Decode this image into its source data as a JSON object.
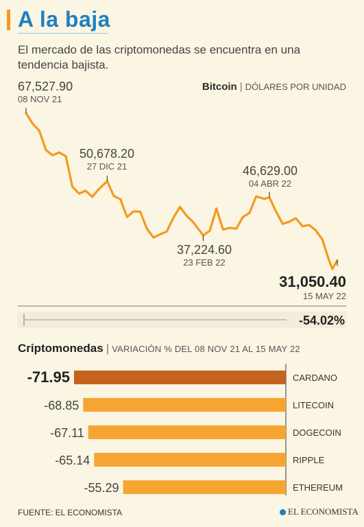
{
  "header": {
    "title": "A la baja",
    "subtitle": "El mercado de las criptomonedas se encuentra en una tendencia bajista."
  },
  "line_chart": {
    "series_name": "Bitcoin",
    "unit": "DÓLARES POR UNIDAD",
    "total_change": "-54.02%",
    "total_change_value": -54.02
  },
  "bar_section": {
    "title": "Criptomonedas",
    "note": "VARIACIÓN % DEL 08 NOV 21 AL 15 MAY 22"
  },
  "footer": {
    "source": "FUENTE: EL ECONOMISTA",
    "logo": "EL ECONOMISTA"
  },
  "colors": {
    "line": "#f39a1e",
    "bar": "#f7a532",
    "bar_highlight": "#c4631f",
    "title": "#1f7fc0",
    "background": "#fbf5e3"
  },
  "chart_data": [
    {
      "type": "line",
      "title": "Bitcoin",
      "ylabel": "DÓLARES POR UNIDAD",
      "ylim": [
        28000,
        70000
      ],
      "x": [
        "2021-11-08",
        "2021-11-12",
        "2021-11-16",
        "2021-11-20",
        "2021-11-24",
        "2021-11-28",
        "2021-12-02",
        "2021-12-06",
        "2021-12-10",
        "2021-12-14",
        "2021-12-18",
        "2021-12-22",
        "2021-12-27",
        "2021-12-31",
        "2022-01-04",
        "2022-01-08",
        "2022-01-12",
        "2022-01-16",
        "2022-01-20",
        "2022-01-24",
        "2022-01-28",
        "2022-02-01",
        "2022-02-05",
        "2022-02-09",
        "2022-02-13",
        "2022-02-17",
        "2022-02-23",
        "2022-02-27",
        "2022-03-03",
        "2022-03-07",
        "2022-03-11",
        "2022-03-15",
        "2022-03-19",
        "2022-03-23",
        "2022-03-27",
        "2022-04-01",
        "2022-04-04",
        "2022-04-08",
        "2022-04-12",
        "2022-04-16",
        "2022-04-20",
        "2022-04-24",
        "2022-04-28",
        "2022-05-02",
        "2022-05-06",
        "2022-05-10",
        "2022-05-12",
        "2022-05-15"
      ],
      "y": [
        67527.9,
        64900,
        63200,
        58400,
        57100,
        57800,
        56900,
        49300,
        47600,
        48300,
        46800,
        48700,
        50678.2,
        47000,
        46200,
        41800,
        43200,
        43100,
        38900,
        36700,
        37500,
        38200,
        41600,
        44300,
        42100,
        40500,
        37224.6,
        38400,
        43900,
        38700,
        39100,
        38900,
        41800,
        42800,
        46900,
        46300,
        46629,
        43200,
        40100,
        40600,
        41500,
        39500,
        39800,
        38500,
        36200,
        31100,
        28900,
        31050.4
      ],
      "annotations": [
        {
          "value": "67,527.90",
          "date": "08 NOV 21"
        },
        {
          "value": "50,678.20",
          "date": "27 DIC 21"
        },
        {
          "value": "37,224.60",
          "date": "23 FEB 22"
        },
        {
          "value": "46,629.00",
          "date": "04 ABR 22"
        },
        {
          "value": "31,050.40",
          "date": "15 MAY 22"
        }
      ]
    },
    {
      "type": "bar",
      "title": "Criptomonedas",
      "categories": [
        "CARDANO",
        "LITECOIN",
        "DOGECOIN",
        "RIPPLE",
        "ETHEREUM"
      ],
      "values": [
        -71.95,
        -68.85,
        -67.11,
        -65.14,
        -55.29
      ],
      "labels": [
        "-71.95",
        "-68.85",
        "-67.11",
        "-65.14",
        "-55.29"
      ],
      "highlight_index": 0
    }
  ]
}
